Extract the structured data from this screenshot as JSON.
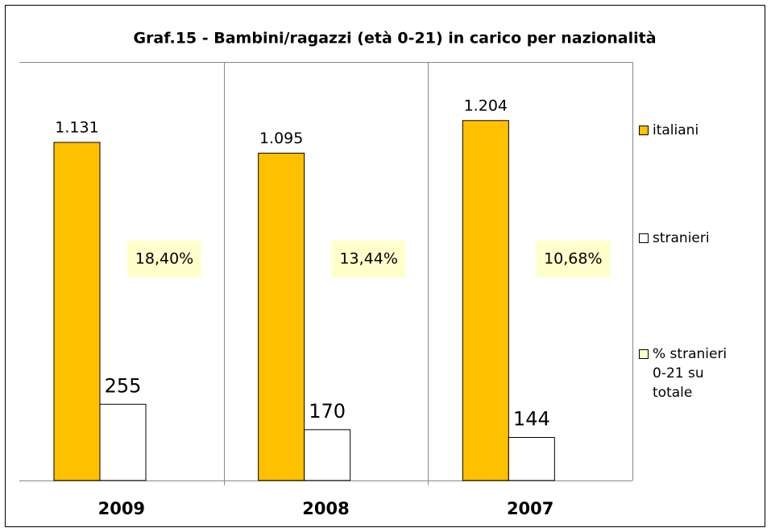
{
  "chart_data": {
    "type": "bar",
    "title": "Graf.15 - Bambini/ragazzi (età 0-21) in carico  per nazionalità",
    "categories": [
      "2009",
      "2008",
      "2007"
    ],
    "series": [
      {
        "name": "italiani",
        "color": "#ffc000",
        "values": [
          1131,
          1095,
          1204
        ],
        "value_labels": [
          "1.131",
          "1.095",
          "1.204"
        ]
      },
      {
        "name": "stranieri",
        "color": "#ffffff",
        "values": [
          255,
          170,
          144
        ]
      },
      {
        "name": "% stranieri 0-21 su totale",
        "color": "#ffffcc",
        "values": [
          18.4,
          13.44,
          10.68
        ],
        "value_labels": [
          "18,40%",
          "13,44%",
          "10,68%"
        ]
      }
    ],
    "ylim": [
      0,
      1400
    ]
  }
}
